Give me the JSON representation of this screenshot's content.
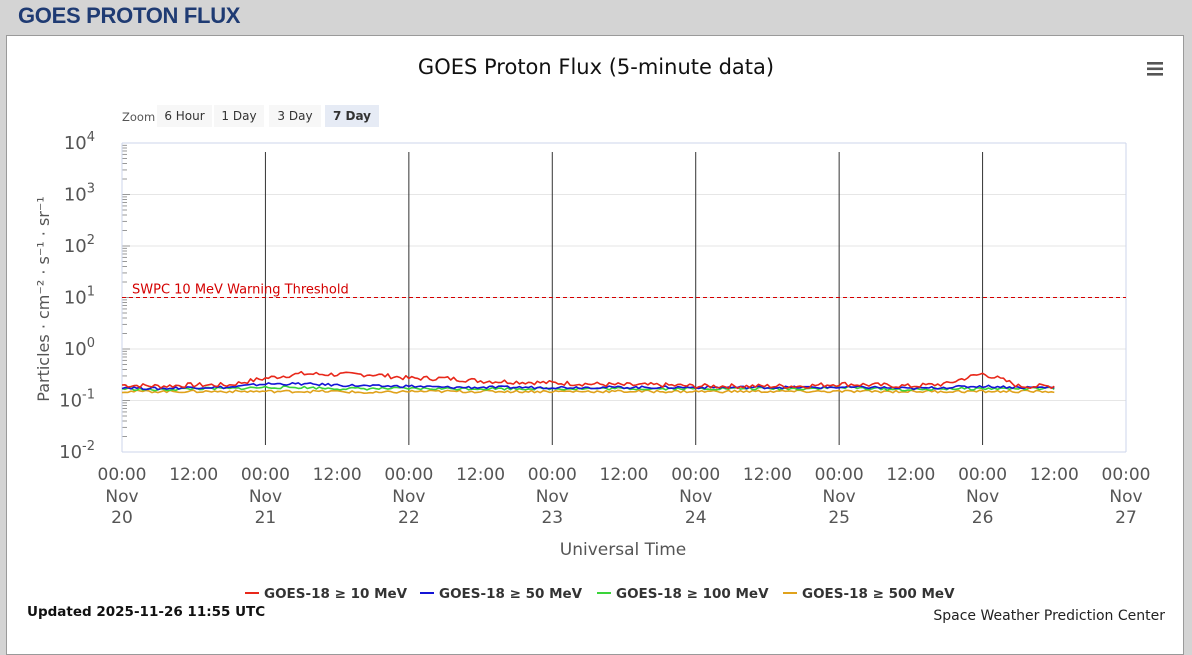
{
  "header": {
    "title": "GOES PROTON FLUX"
  },
  "zoom": {
    "label": "Zoom",
    "buttons": [
      {
        "label": "6 Hour",
        "selected": false
      },
      {
        "label": "1 Day",
        "selected": false
      },
      {
        "label": "3 Day",
        "selected": false
      },
      {
        "label": "7 Day",
        "selected": true
      }
    ]
  },
  "menu_icon": "hamburger-menu-icon",
  "footer": {
    "updated": "Updated 2025-11-26 11:55 UTC",
    "credit": "Space Weather Prediction Center"
  },
  "colors": {
    "threshold": "#d40000",
    "gridline": "#e6e6e6",
    "title_blue": "#1f3b73"
  },
  "chart_data": {
    "type": "line",
    "title": "GOES Proton Flux (5-minute data)",
    "xlabel": "Universal Time",
    "ylabel": "Particles · cm⁻² · s⁻¹ · sr⁻¹",
    "y_scale": "log",
    "ylim": [
      0.01,
      10000
    ],
    "xlim": [
      "2025-11-20 00:00",
      "2025-11-27 00:00"
    ],
    "y_ticks": [
      {
        "base": "10",
        "exp": "4"
      },
      {
        "base": "10",
        "exp": "3"
      },
      {
        "base": "10",
        "exp": "2"
      },
      {
        "base": "10",
        "exp": "1"
      },
      {
        "base": "10",
        "exp": "0"
      },
      {
        "base": "10",
        "exp": "-1"
      },
      {
        "base": "10",
        "exp": "-2"
      }
    ],
    "x_ticks": [
      {
        "time": "00:00",
        "month": "Nov",
        "day": "20"
      },
      {
        "time": "12:00",
        "month": "",
        "day": ""
      },
      {
        "time": "00:00",
        "month": "Nov",
        "day": "21"
      },
      {
        "time": "12:00",
        "month": "",
        "day": ""
      },
      {
        "time": "00:00",
        "month": "Nov",
        "day": "22"
      },
      {
        "time": "12:00",
        "month": "",
        "day": ""
      },
      {
        "time": "00:00",
        "month": "Nov",
        "day": "23"
      },
      {
        "time": "12:00",
        "month": "",
        "day": ""
      },
      {
        "time": "00:00",
        "month": "Nov",
        "day": "24"
      },
      {
        "time": "12:00",
        "month": "",
        "day": ""
      },
      {
        "time": "00:00",
        "month": "Nov",
        "day": "25"
      },
      {
        "time": "12:00",
        "month": "",
        "day": ""
      },
      {
        "time": "00:00",
        "month": "Nov",
        "day": "26"
      },
      {
        "time": "12:00",
        "month": "",
        "day": ""
      },
      {
        "time": "00:00",
        "month": "Nov",
        "day": "27"
      }
    ],
    "threshold": {
      "label": "SWPC 10 MeV Warning Threshold",
      "value": 10
    },
    "day_boundaries": [
      "2025-11-21 00:00",
      "2025-11-22 00:00",
      "2025-11-23 00:00",
      "2025-11-24 00:00",
      "2025-11-25 00:00",
      "2025-11-26 00:00"
    ],
    "x_hours": [
      0,
      6,
      12,
      18,
      24,
      30,
      36,
      42,
      48,
      54,
      60,
      66,
      72,
      78,
      84,
      90,
      96,
      102,
      108,
      114,
      120,
      126,
      132,
      138,
      144,
      150,
      156
    ],
    "series": [
      {
        "name": "GOES-18 ≥ 10 MeV",
        "color": "#e8281a",
        "values": [
          0.2,
          0.19,
          0.2,
          0.2,
          0.27,
          0.33,
          0.32,
          0.32,
          0.27,
          0.27,
          0.24,
          0.23,
          0.22,
          0.21,
          0.2,
          0.2,
          0.19,
          0.19,
          0.19,
          0.19,
          0.21,
          0.2,
          0.19,
          0.21,
          0.33,
          0.19,
          0.19
        ]
      },
      {
        "name": "GOES-18 ≥ 50 MeV",
        "color": "#1414d6",
        "values": [
          0.18,
          0.17,
          0.18,
          0.18,
          0.21,
          0.21,
          0.2,
          0.19,
          0.19,
          0.18,
          0.18,
          0.18,
          0.18,
          0.18,
          0.18,
          0.18,
          0.18,
          0.18,
          0.18,
          0.18,
          0.18,
          0.18,
          0.17,
          0.18,
          0.19,
          0.18,
          0.18
        ]
      },
      {
        "name": "GOES-18 ≥ 100 MeV",
        "color": "#3ad43a",
        "values": [
          0.17,
          0.16,
          0.17,
          0.17,
          0.18,
          0.18,
          0.17,
          0.17,
          0.17,
          0.17,
          0.17,
          0.17,
          0.17,
          0.17,
          0.17,
          0.17,
          0.17,
          0.17,
          0.17,
          0.17,
          0.18,
          0.17,
          0.16,
          0.17,
          0.17,
          0.17,
          0.17
        ]
      },
      {
        "name": "GOES-18 ≥ 500 MeV",
        "color": "#e0a21c",
        "values": [
          0.15,
          0.15,
          0.15,
          0.15,
          0.15,
          0.15,
          0.15,
          0.14,
          0.15,
          0.15,
          0.15,
          0.15,
          0.15,
          0.15,
          0.15,
          0.15,
          0.15,
          0.15,
          0.15,
          0.15,
          0.15,
          0.15,
          0.15,
          0.15,
          0.15,
          0.15,
          0.15
        ]
      }
    ]
  }
}
